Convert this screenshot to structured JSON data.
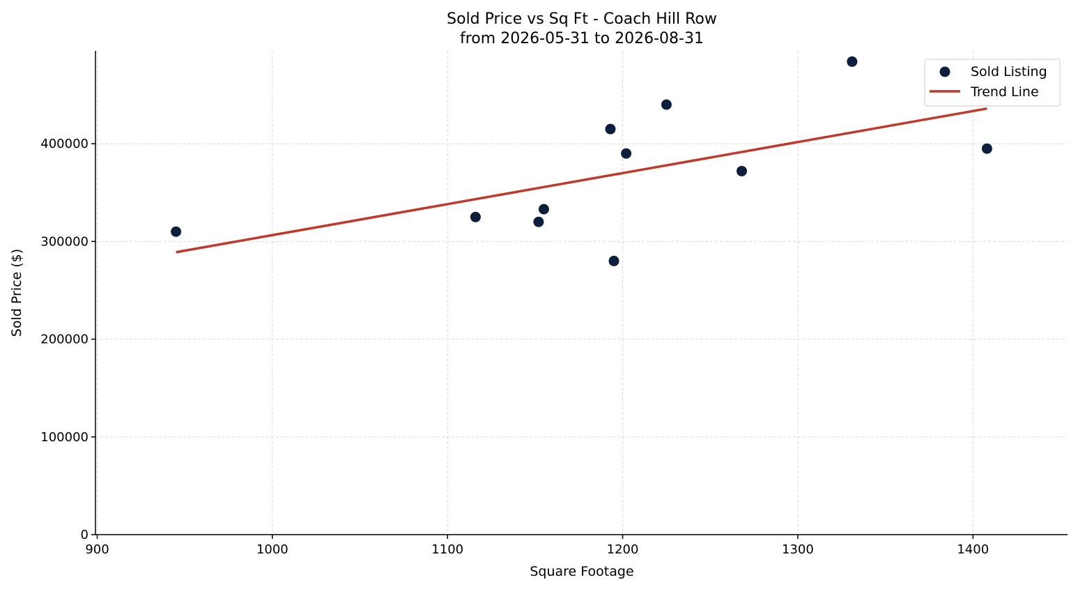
{
  "chart_data": {
    "type": "scatter",
    "title": "Sold Price vs Sq Ft - Coach Hill Row",
    "subtitle": "from 2026-05-31 to 2026-08-31",
    "xlabel": "Square Footage",
    "ylabel": "Sold Price ($)",
    "xlim": [
      899,
      1454
    ],
    "ylim": [
      0,
      495000
    ],
    "xticks": [
      900,
      1000,
      1100,
      1200,
      1300,
      1400
    ],
    "yticks": [
      0,
      100000,
      200000,
      300000,
      400000
    ],
    "grid": true,
    "legend_position": "top-right",
    "series": [
      {
        "name": "Sold Listing",
        "kind": "scatter",
        "color": "#0d1f3c",
        "points": [
          {
            "x": 945,
            "y": 310000
          },
          {
            "x": 1116,
            "y": 325000
          },
          {
            "x": 1152,
            "y": 320000
          },
          {
            "x": 1155,
            "y": 333000
          },
          {
            "x": 1193,
            "y": 415000
          },
          {
            "x": 1195,
            "y": 280000
          },
          {
            "x": 1202,
            "y": 390000
          },
          {
            "x": 1225,
            "y": 440000
          },
          {
            "x": 1268,
            "y": 372000
          },
          {
            "x": 1331,
            "y": 484000
          },
          {
            "x": 1408,
            "y": 395000
          }
        ]
      },
      {
        "name": "Trend Line",
        "kind": "line",
        "color": "#c0392b",
        "points": [
          {
            "x": 945,
            "y": 289000
          },
          {
            "x": 1408,
            "y": 436000
          }
        ]
      }
    ]
  }
}
